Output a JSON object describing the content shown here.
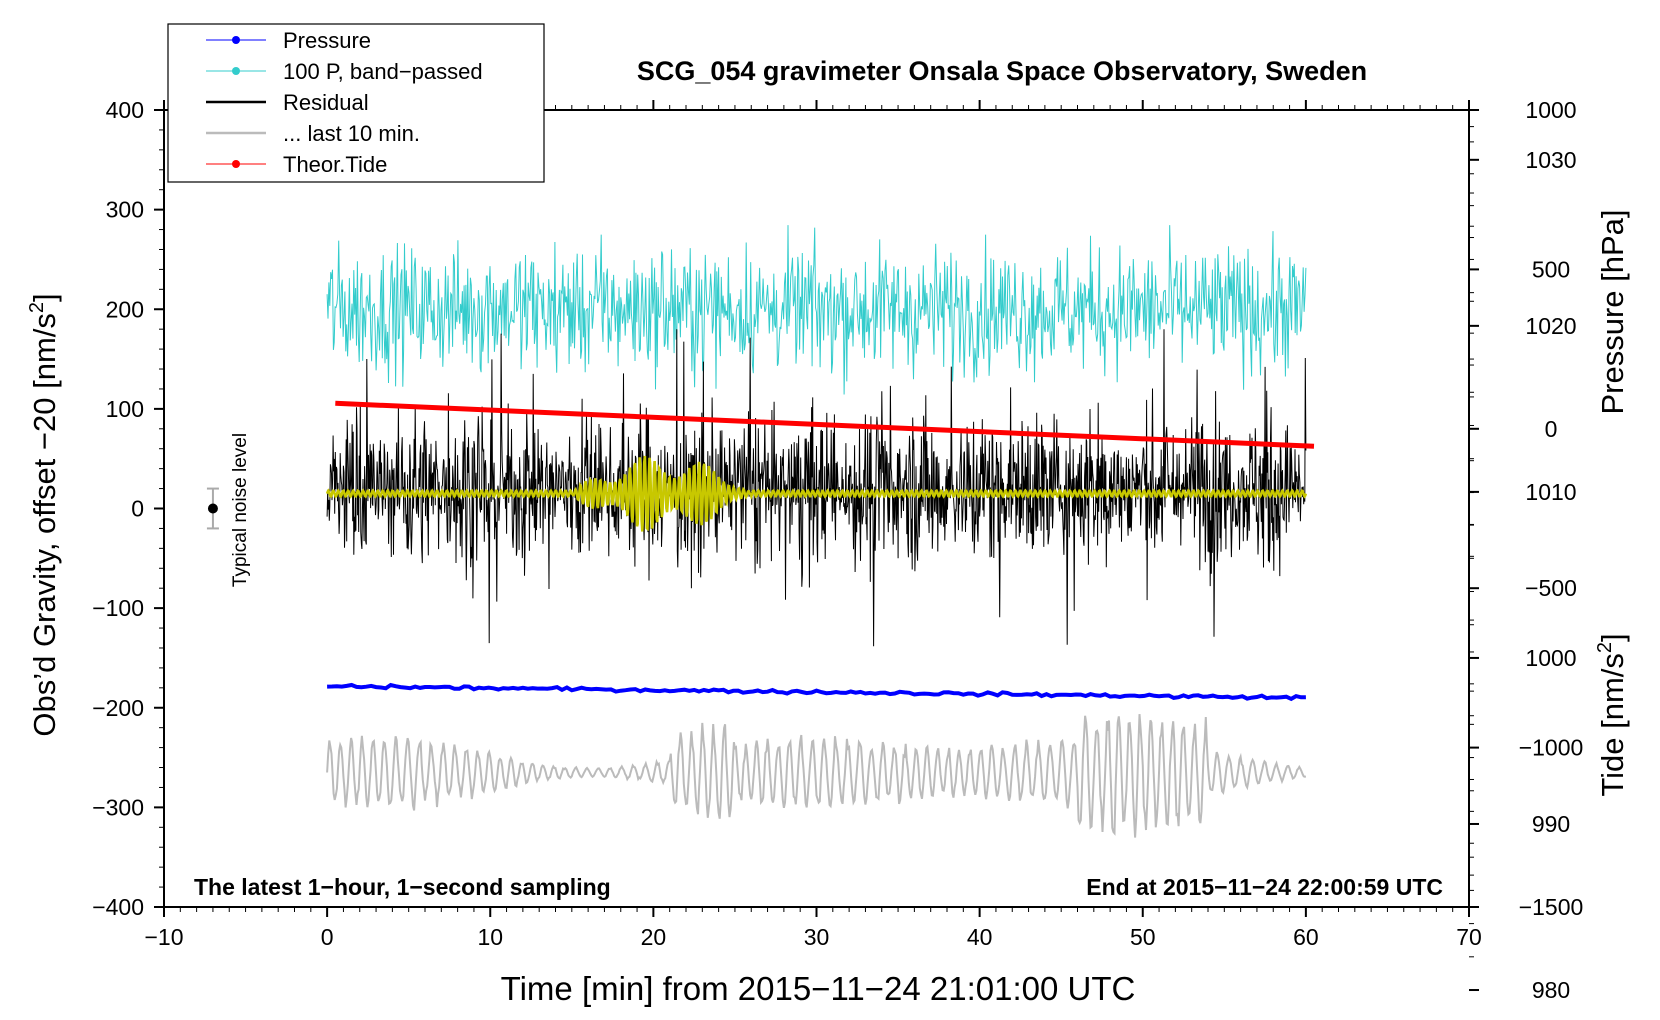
{
  "chart_data": {
    "type": "line",
    "title": "SCG_054 gravimeter Onsala Space Observatory, Sweden",
    "xlabel": "Time [min] from 2015−11−24 21:01:00 UTC",
    "ylabel_left_main": "Obs’d Gravity, offset −20 [nm/s",
    "ylabel_left_sup": "2",
    "ylabel_left_end": "]",
    "ylabel_right_pressure": "Pressure [hPa]",
    "ylabel_right_tide_main": "Tide [nm/s",
    "ylabel_right_tide_sup": "2",
    "ylabel_right_tide_end": "]",
    "xlim": [
      -10,
      70
    ],
    "ylim": [
      -400,
      400
    ],
    "pressure_ylim": [
      985,
      1033
    ],
    "tide_ylim": [
      -1500,
      1000
    ],
    "x_ticks": [
      -10,
      0,
      10,
      20,
      30,
      40,
      50,
      60,
      70
    ],
    "x_tick_labels": [
      "−10",
      "0",
      "10",
      "20",
      "30",
      "40",
      "50",
      "60",
      "70"
    ],
    "y_ticks": [
      -400,
      -300,
      -200,
      -100,
      0,
      100,
      200,
      300,
      400
    ],
    "y_tick_labels": [
      "−400",
      "−300",
      "−200",
      "−100",
      "0",
      "100",
      "200",
      "300",
      "400"
    ],
    "pressure_ticks": [
      980,
      990,
      1000,
      1010,
      1020,
      1030
    ],
    "pressure_tick_labels": [
      "980",
      "990",
      "1000",
      "1010",
      "1020",
      "1030"
    ],
    "tide_ticks": [
      -1500,
      -1000,
      -500,
      0,
      500,
      1000
    ],
    "tide_tick_labels": [
      "−1500",
      "−1000",
      "−500",
      "0",
      "500",
      "1000"
    ],
    "legend": {
      "position": "top-left",
      "entries": [
        {
          "label": "Pressure",
          "color": "#0000ff",
          "marker": true
        },
        {
          "label": "100 P, band−passed",
          "color": "#33cccc",
          "marker": true
        },
        {
          "label": "Residual",
          "color": "#000000",
          "marker": false
        },
        {
          "label": "... last 10 min.",
          "color": "#bbbbbb",
          "marker": false
        },
        {
          "label": "Theor.Tide",
          "color": "#ff0000",
          "marker": true
        }
      ]
    },
    "annotations": {
      "bottom_left": "The latest 1−hour, 1−second sampling",
      "bottom_right": "End at 2015−11−24 22:00:59 UTC",
      "noise_label": "Typical noise level",
      "noise_bar": {
        "x": -7,
        "y": 0,
        "half_range": 20
      }
    },
    "series": [
      {
        "name": "Pressure",
        "axis": "pressure",
        "color": "#0000ff",
        "start_value": 998.3,
        "end_value": 997.6,
        "x_range": [
          0,
          60
        ]
      },
      {
        "name": "100 P, band−passed",
        "axis": "left",
        "color": "#33cccc",
        "center": 200,
        "typical_amplitude": 35,
        "max_value": 320,
        "min_value": 95,
        "x_range": [
          0,
          60
        ]
      },
      {
        "name": "Residual",
        "axis": "left",
        "color": "#000000",
        "center": 20,
        "typical_amplitude": 60,
        "max_value": 180,
        "min_value": -145,
        "x_range": [
          0,
          60
        ]
      },
      {
        "name": "Low-pass residual",
        "axis": "left",
        "color": "#c8c800",
        "center": 15,
        "burst_x": [
          15,
          26
        ],
        "burst_amplitude": 40,
        "x_range": [
          0,
          60
        ]
      },
      {
        "name": "... last 10 min.",
        "axis": "left",
        "color": "#bbbbbb",
        "center": -265,
        "typical_amplitude": 40,
        "max_value": -145,
        "min_value": -365,
        "x_range": [
          0,
          60
        ]
      },
      {
        "name": "Theor.Tide",
        "axis": "tide",
        "color": "#ff0000",
        "start_value": 80,
        "end_value": -55,
        "x_range": [
          0.5,
          60.5
        ]
      }
    ]
  }
}
